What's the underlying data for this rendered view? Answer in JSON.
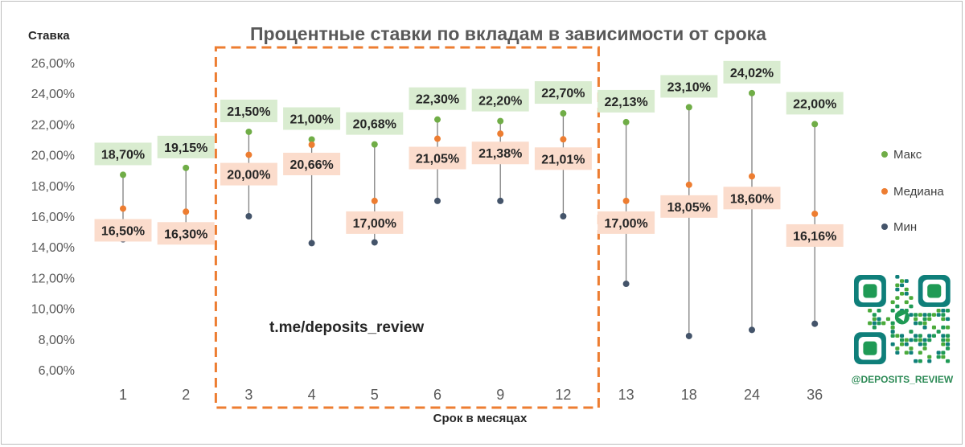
{
  "chart_data": {
    "type": "scatter",
    "title": "Процентные ставки по вкладам в зависимости от срока",
    "ylabel": "Ставка",
    "xlabel": "Срок в месяцах",
    "categories": [
      "1",
      "2",
      "3",
      "4",
      "5",
      "6",
      "9",
      "12",
      "13",
      "18",
      "24",
      "36"
    ],
    "ylim": [
      6,
      26
    ],
    "yticks": [
      "6,00%",
      "8,00%",
      "10,00%",
      "12,00%",
      "14,00%",
      "16,00%",
      "18,00%",
      "20,00%",
      "22,00%",
      "24,00%",
      "26,00%"
    ],
    "yticks_values": [
      6,
      8,
      10,
      12,
      14,
      16,
      18,
      20,
      22,
      24,
      26
    ],
    "series": [
      {
        "name": "Макс",
        "color": "#70ad47",
        "values": [
          18.7,
          19.15,
          21.5,
          21.0,
          20.68,
          22.3,
          22.2,
          22.7,
          22.13,
          23.1,
          24.02,
          22.0
        ],
        "labels": [
          "18,70%",
          "19,15%",
          "21,50%",
          "21,00%",
          "20,68%",
          "22,30%",
          "22,20%",
          "22,70%",
          "22,13%",
          "23,10%",
          "24,02%",
          "22,00%"
        ]
      },
      {
        "name": "Медиана",
        "color": "#ed7d31",
        "values": [
          16.5,
          16.3,
          20.0,
          20.66,
          17.0,
          21.05,
          21.38,
          21.01,
          17.0,
          18.05,
          18.6,
          16.16
        ],
        "labels": [
          "16,50%",
          "16,30%",
          "20,00%",
          "20,66%",
          "17,00%",
          "21,05%",
          "21,38%",
          "21,01%",
          "17,00%",
          "18,05%",
          "18,60%",
          "16,16%"
        ]
      },
      {
        "name": "Мин",
        "color": "#44546a",
        "values": [
          14.5,
          15.2,
          16.0,
          14.25,
          14.3,
          17.0,
          17.0,
          16.0,
          11.6,
          8.2,
          8.6,
          9.0
        ]
      }
    ],
    "legend_position": "right",
    "grid": false,
    "highlight_range": [
      "3",
      "12"
    ],
    "highlight_color": "#ed7d31",
    "max_label_bg": "#d9ecd0",
    "median_label_bg": "#fbdccc"
  },
  "watermark": "t.me/deposits_review",
  "qr_caption": "@DEPOSITS_REVIEW"
}
